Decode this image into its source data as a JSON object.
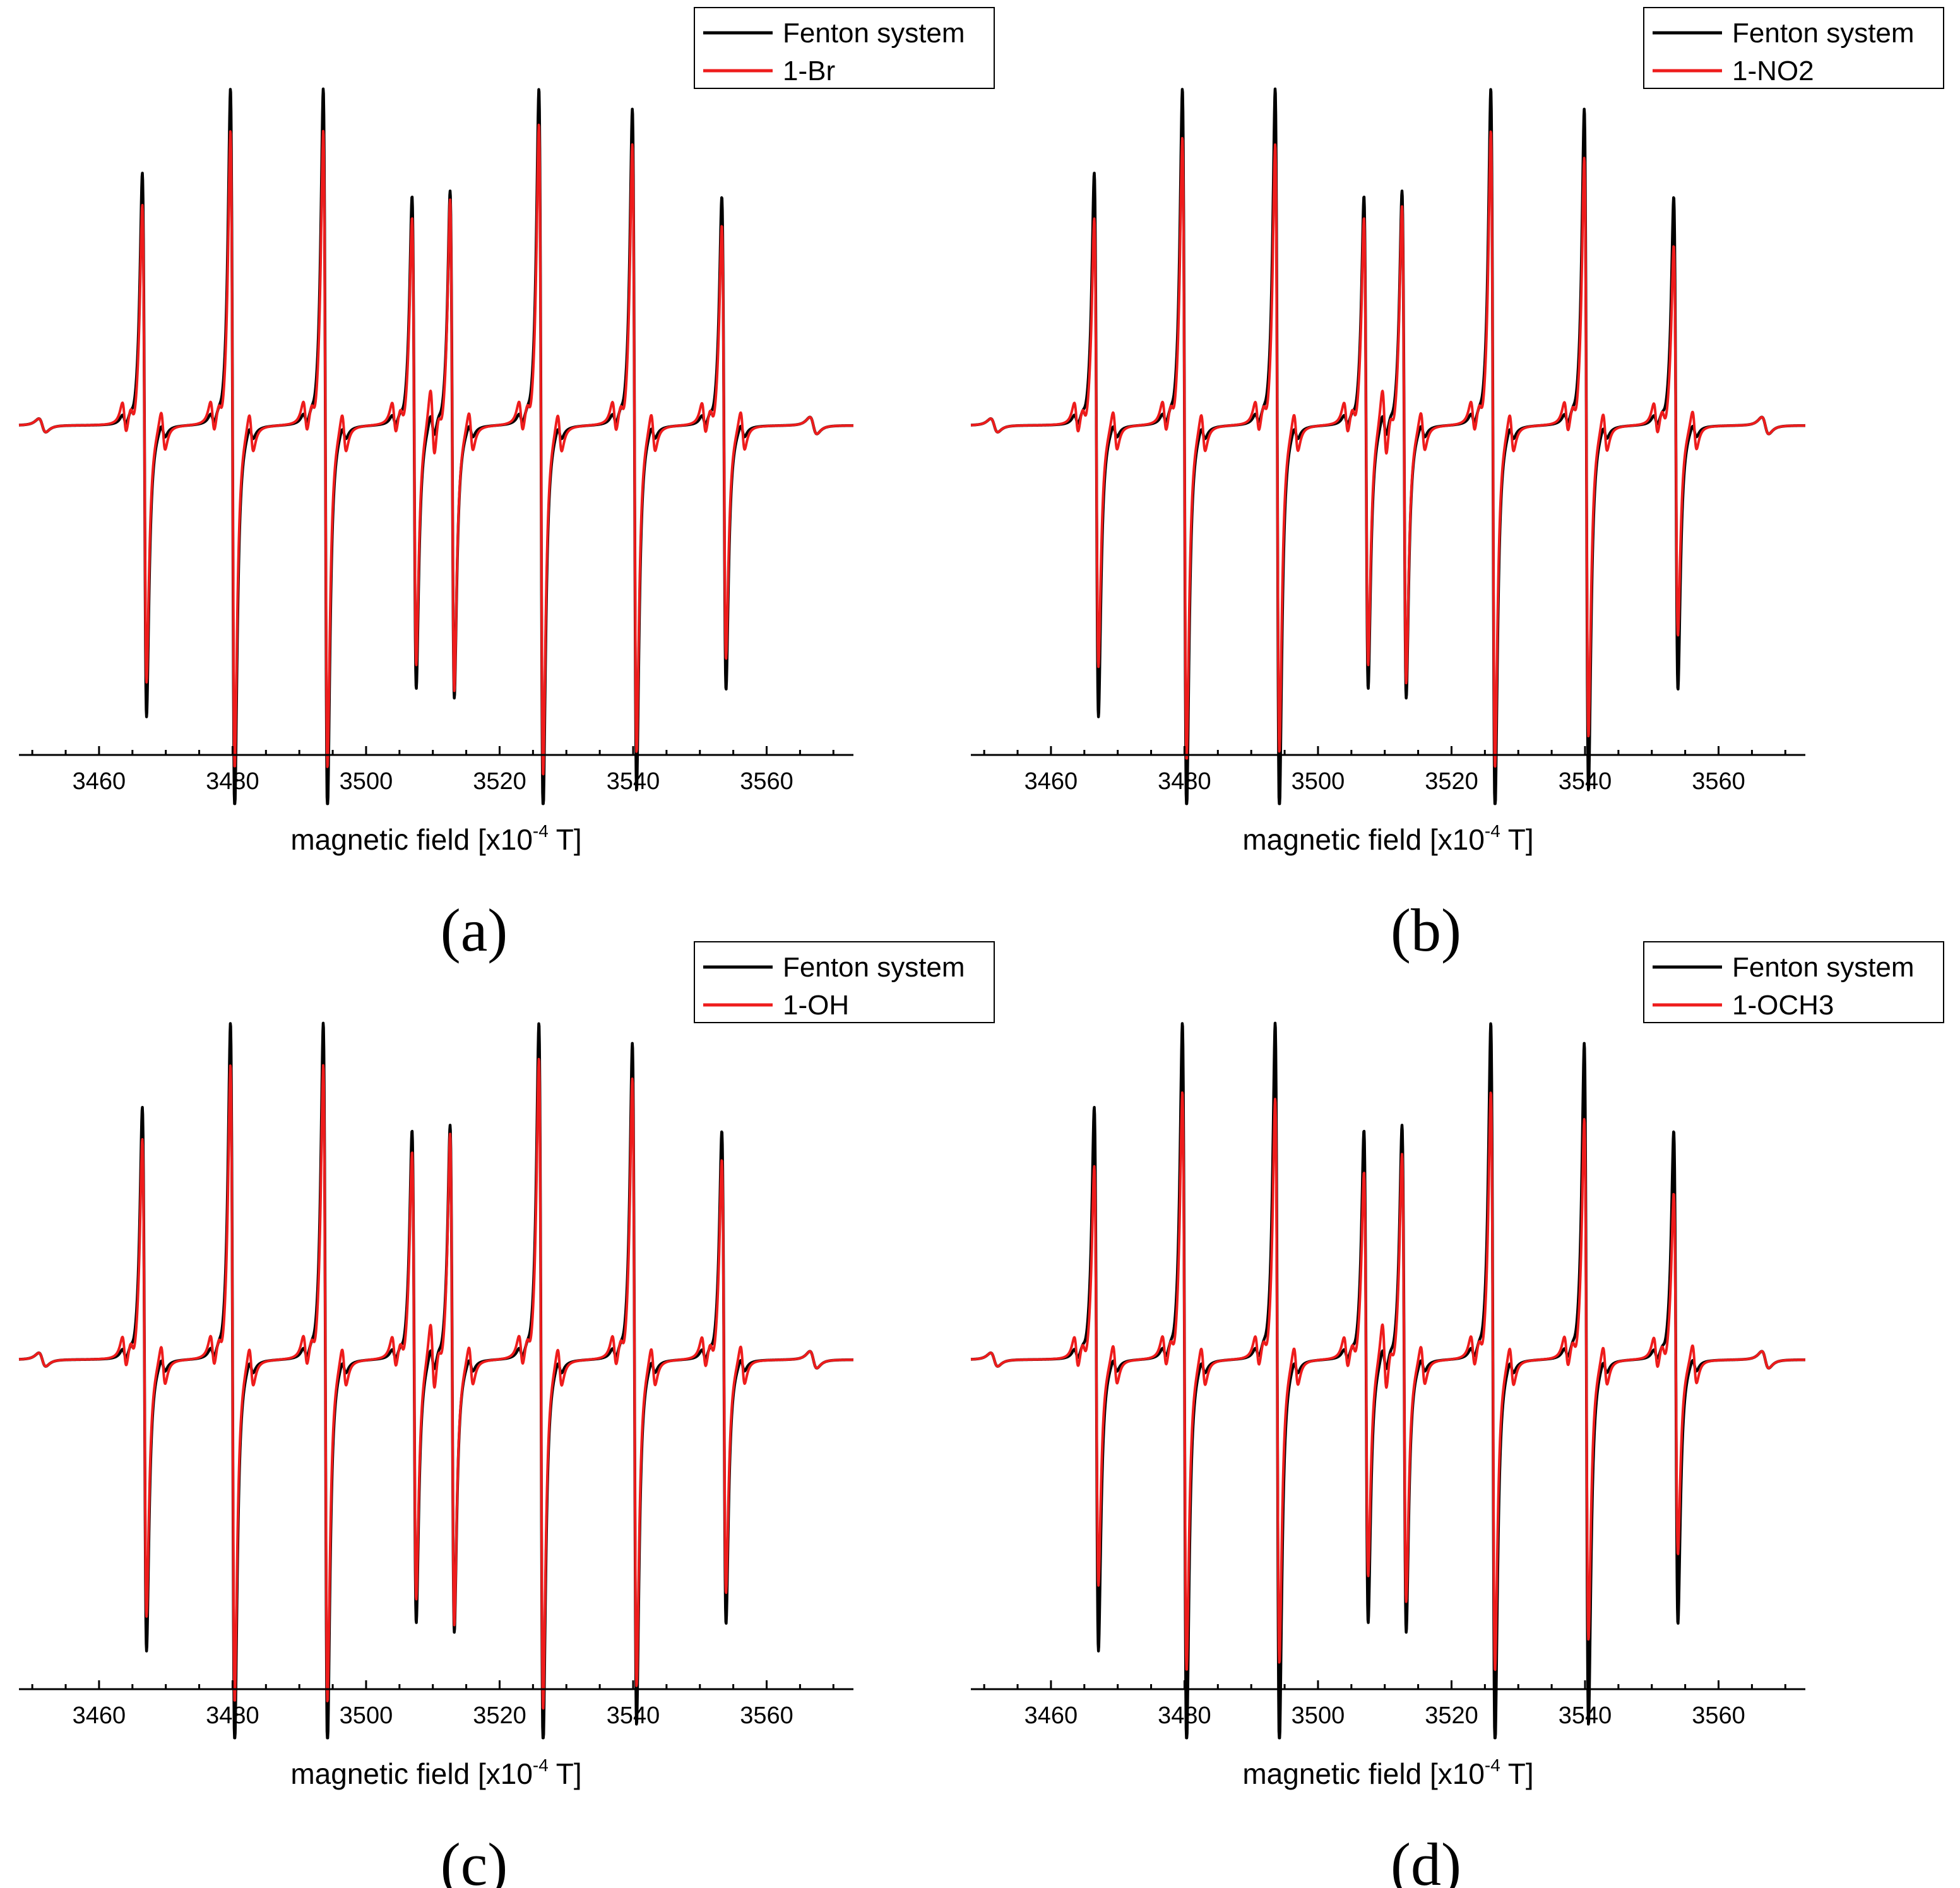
{
  "figure": {
    "x_unit_power": "-4",
    "panels": [
      {
        "label": "(a)",
        "legend": [
          "Fenton system",
          "1-Br"
        ]
      },
      {
        "label": "(b)",
        "legend": [
          "Fenton system",
          "1-NO2"
        ]
      },
      {
        "label": "(c)",
        "legend": [
          "Fenton system",
          "1-OH"
        ]
      },
      {
        "label": "(d)",
        "legend": [
          "Fenton system",
          "1-OCH3"
        ]
      }
    ]
  },
  "chart_data": [
    {
      "type": "line",
      "title": "(a)",
      "xlabel": "magnetic field [x10-4 T]",
      "ylabel": "",
      "xlim": [
        3448,
        3573
      ],
      "ylim": [
        -1.05,
        1.05
      ],
      "xticks": [
        3460,
        3480,
        3500,
        3520,
        3540,
        3560
      ],
      "yaxis_visible": false,
      "legend_position": "top-right",
      "lines": [
        3466.8,
        3480.0,
        3493.9,
        3507.2,
        3512.9,
        3526.2,
        3540.2,
        3553.6
      ],
      "series": [
        {
          "name": "Fenton system",
          "color": "#000000",
          "heights": [
            0.75,
            1.0,
            1.0,
            0.68,
            0.7,
            1.0,
            0.94,
            0.68
          ],
          "satellite_scale": 0.3
        },
        {
          "name": "1-Br",
          "color": "#ee1c1c",
          "heights": [
            0.66,
            0.88,
            0.88,
            0.62,
            0.68,
            0.9,
            0.84,
            0.6
          ],
          "satellite_scale": 0.85
        }
      ]
    },
    {
      "type": "line",
      "title": "(b)",
      "xlabel": "magnetic field [x10-4 T]",
      "ylabel": "",
      "xlim": [
        3448,
        3573
      ],
      "ylim": [
        -1.05,
        1.05
      ],
      "xticks": [
        3460,
        3480,
        3500,
        3520,
        3540,
        3560
      ],
      "yaxis_visible": false,
      "legend_position": "top-right",
      "lines": [
        3466.8,
        3480.0,
        3493.9,
        3507.2,
        3512.9,
        3526.2,
        3540.2,
        3553.6
      ],
      "series": [
        {
          "name": "Fenton system",
          "color": "#000000",
          "heights": [
            0.75,
            1.0,
            1.0,
            0.68,
            0.7,
            1.0,
            0.94,
            0.68
          ],
          "satellite_scale": 0.3
        },
        {
          "name": "1-NO2",
          "color": "#ee1c1c",
          "heights": [
            0.62,
            0.86,
            0.84,
            0.62,
            0.66,
            0.88,
            0.8,
            0.54
          ],
          "satellite_scale": 0.85
        }
      ]
    },
    {
      "type": "line",
      "title": "(c)",
      "xlabel": "magnetic field [x10-4 T]",
      "ylabel": "",
      "xlim": [
        3448,
        3573
      ],
      "ylim": [
        -1.05,
        1.05
      ],
      "xticks": [
        3460,
        3480,
        3500,
        3520,
        3540,
        3560
      ],
      "yaxis_visible": false,
      "legend_position": "top-right",
      "lines": [
        3466.8,
        3480.0,
        3493.9,
        3507.2,
        3512.9,
        3526.2,
        3540.2,
        3553.6
      ],
      "series": [
        {
          "name": "Fenton system",
          "color": "#000000",
          "heights": [
            0.75,
            1.0,
            1.0,
            0.68,
            0.7,
            1.0,
            0.94,
            0.68
          ],
          "satellite_scale": 0.3
        },
        {
          "name": "1-OH",
          "color": "#ee1c1c",
          "heights": [
            0.66,
            0.88,
            0.88,
            0.62,
            0.68,
            0.9,
            0.84,
            0.6
          ],
          "satellite_scale": 0.85
        }
      ]
    },
    {
      "type": "line",
      "title": "(d)",
      "xlabel": "magnetic field [x10-4 T]",
      "ylabel": "",
      "xlim": [
        3448,
        3573
      ],
      "ylim": [
        -1.05,
        1.05
      ],
      "xticks": [
        3460,
        3480,
        3500,
        3520,
        3540,
        3560
      ],
      "yaxis_visible": false,
      "legend_position": "top-right",
      "lines": [
        3466.8,
        3480.0,
        3493.9,
        3507.2,
        3512.9,
        3526.2,
        3540.2,
        3553.6
      ],
      "series": [
        {
          "name": "Fenton system",
          "color": "#000000",
          "heights": [
            0.75,
            1.0,
            1.0,
            0.68,
            0.7,
            1.0,
            0.94,
            0.68
          ],
          "satellite_scale": 0.3
        },
        {
          "name": "1-OCH3",
          "color": "#ee1c1c",
          "heights": [
            0.58,
            0.8,
            0.78,
            0.56,
            0.62,
            0.8,
            0.72,
            0.5
          ],
          "satellite_scale": 0.85
        }
      ]
    }
  ]
}
